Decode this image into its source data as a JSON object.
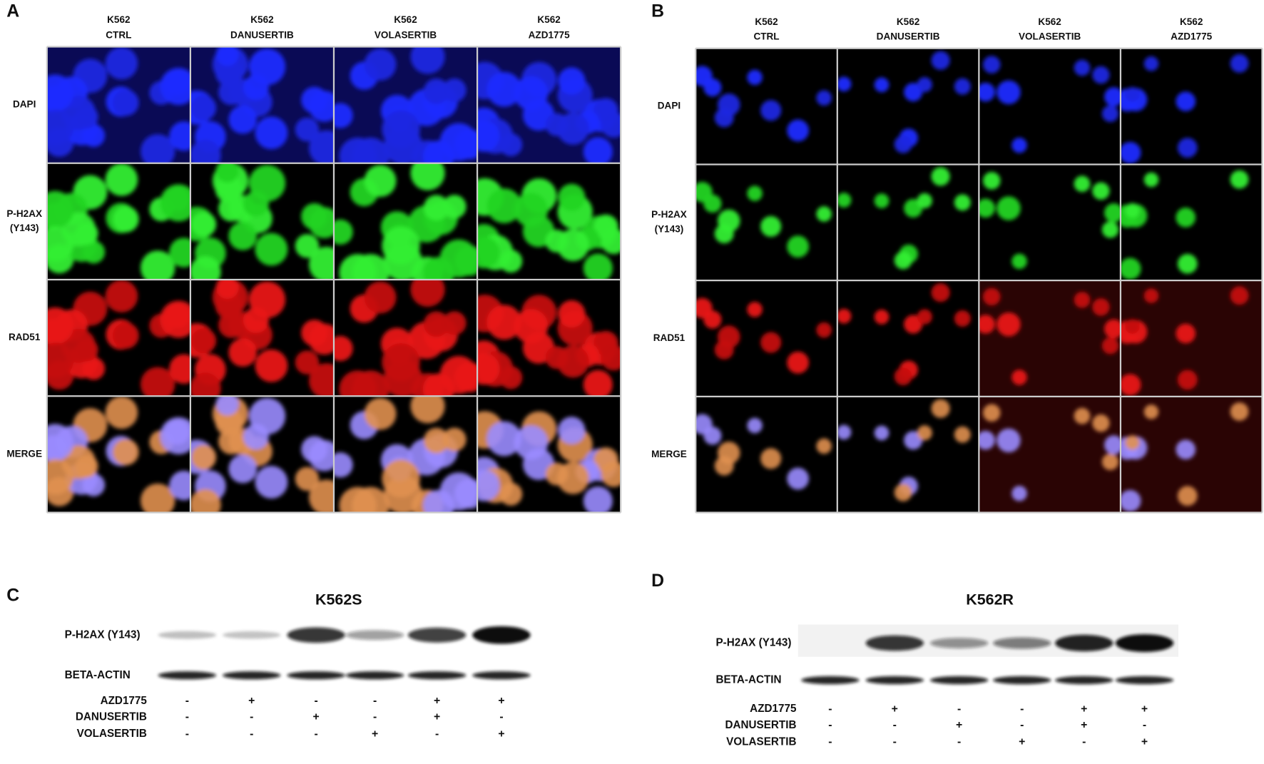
{
  "panels": [
    {
      "letter": "A",
      "columns": [
        [
          "K562",
          "CTRL"
        ],
        [
          "K562",
          "DANUSERTIB"
        ],
        [
          "K562",
          "VOLASERTIB"
        ],
        [
          "K562",
          "AZD1775"
        ]
      ],
      "rows": [
        [
          "DAPI"
        ],
        [
          "P-H2AX",
          "(Y143)"
        ],
        [
          "RAD51"
        ],
        [
          "MERGE"
        ]
      ]
    },
    {
      "letter": "B",
      "columns": [
        [
          "K562",
          "CTRL"
        ],
        [
          "K562",
          "DANUSERTIB"
        ],
        [
          "K562",
          "VOLASERTIB"
        ],
        [
          "K562",
          "AZD1775"
        ]
      ],
      "rows": [
        [
          "DAPI"
        ],
        [
          "P-H2AX",
          "(Y143)"
        ],
        [
          "RAD51"
        ],
        [
          "MERGE"
        ]
      ]
    }
  ],
  "blots": [
    {
      "letter": "C",
      "title": "K562S",
      "bands": [
        "P-H2AX (Y143)",
        "BETA-ACTIN"
      ],
      "treatments": [
        {
          "name": "AZD1775",
          "signs": [
            "-",
            "+",
            "-",
            "-",
            "+",
            "+"
          ]
        },
        {
          "name": "DANUSERTIB",
          "signs": [
            "-",
            "-",
            "+",
            "-",
            "+",
            "-"
          ]
        },
        {
          "name": "VOLASERTIB",
          "signs": [
            "-",
            "-",
            "-",
            "+",
            "-",
            "+"
          ]
        }
      ]
    },
    {
      "letter": "D",
      "title": "K562R",
      "bands": [
        "P-H2AX (Y143)",
        "BETA-ACTIN"
      ],
      "treatments": [
        {
          "name": "AZD1775",
          "signs": [
            "-",
            "+",
            "-",
            "-",
            "+",
            "+"
          ]
        },
        {
          "name": "DANUSERTIB",
          "signs": [
            "-",
            "-",
            "+",
            "-",
            "+",
            "-"
          ]
        },
        {
          "name": "VOLASERTIB",
          "signs": [
            "-",
            "-",
            "-",
            "+",
            "-",
            "+"
          ]
        }
      ]
    }
  ]
}
